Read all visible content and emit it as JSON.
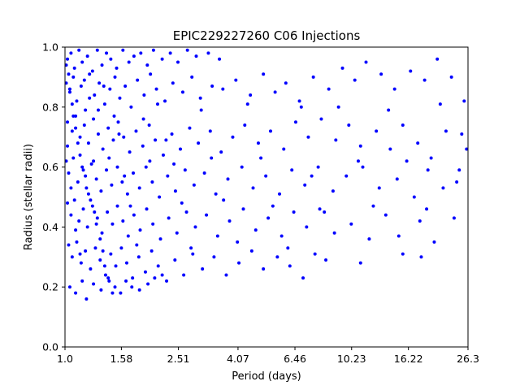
{
  "chart_data": {
    "type": "scatter",
    "title": "EPIC229227260 C06 Injections",
    "xlabel": "Period (days)",
    "ylabel": "Radius (stellar radii)",
    "x_scale": "log",
    "xlim": [
      1.0,
      26.3
    ],
    "ylim": [
      0.0,
      1.0
    ],
    "x_ticks": [
      1.0,
      1.58,
      2.51,
      4.07,
      6.46,
      10.23,
      16.22,
      26.3
    ],
    "x_tick_labels": [
      "1.0",
      "1.58",
      "2.51",
      "4.07",
      "6.46",
      "10.23",
      "16.22",
      "26.3"
    ],
    "y_ticks": [
      0.0,
      0.2,
      0.4,
      0.6,
      0.8,
      1.0
    ],
    "y_tick_labels": [
      "0.0",
      "0.2",
      "0.4",
      "0.6",
      "0.8",
      "1.0"
    ],
    "grid": false,
    "marker_color": "#0000ff",
    "series": [
      {
        "points": [
          [
            1.02,
            0.96
          ],
          [
            1.05,
            0.98
          ],
          [
            1.08,
            0.93
          ],
          [
            1.12,
            0.99
          ],
          [
            1.15,
            0.95
          ],
          [
            1.2,
            0.97
          ],
          [
            1.25,
            0.92
          ],
          [
            1.3,
            0.99
          ],
          [
            1.35,
            0.94
          ],
          [
            1.4,
            0.98
          ],
          [
            1.45,
            0.96
          ],
          [
            1.52,
            0.93
          ],
          [
            1.6,
            0.99
          ],
          [
            1.68,
            0.95
          ],
          [
            1.75,
            0.97
          ],
          [
            1.85,
            0.98
          ],
          [
            1.95,
            0.94
          ],
          [
            2.05,
            0.99
          ],
          [
            2.2,
            0.96
          ],
          [
            2.35,
            0.98
          ],
          [
            2.5,
            0.95
          ],
          [
            2.7,
            0.99
          ],
          [
            2.9,
            0.97
          ],
          [
            3.2,
            0.98
          ],
          [
            3.5,
            0.96
          ],
          [
            1.01,
            0.88
          ],
          [
            1.04,
            0.85
          ],
          [
            1.07,
            0.9
          ],
          [
            1.1,
            0.82
          ],
          [
            1.14,
            0.87
          ],
          [
            1.18,
            0.79
          ],
          [
            1.22,
            0.91
          ],
          [
            1.27,
            0.84
          ],
          [
            1.32,
            0.88
          ],
          [
            1.38,
            0.81
          ],
          [
            1.44,
            0.86
          ],
          [
            1.5,
            0.9
          ],
          [
            1.56,
            0.83
          ],
          [
            1.63,
            0.87
          ],
          [
            1.71,
            0.8
          ],
          [
            1.8,
            0.89
          ],
          [
            1.9,
            0.84
          ],
          [
            2.0,
            0.91
          ],
          [
            2.1,
            0.86
          ],
          [
            2.25,
            0.82
          ],
          [
            2.4,
            0.88
          ],
          [
            2.6,
            0.85
          ],
          [
            2.8,
            0.9
          ],
          [
            3.0,
            0.83
          ],
          [
            3.3,
            0.87
          ],
          [
            3.6,
            0.86
          ],
          [
            4.0,
            0.89
          ],
          [
            4.5,
            0.84
          ],
          [
            5.0,
            0.91
          ],
          [
            5.5,
            0.85
          ],
          [
            6.0,
            0.88
          ],
          [
            6.7,
            0.82
          ],
          [
            7.5,
            0.9
          ],
          [
            8.5,
            0.86
          ],
          [
            9.5,
            0.93
          ],
          [
            10.5,
            0.89
          ],
          [
            11.5,
            0.95
          ],
          [
            13.0,
            0.91
          ],
          [
            14.5,
            0.86
          ],
          [
            16.5,
            0.92
          ],
          [
            18.5,
            0.89
          ],
          [
            20.5,
            0.96
          ],
          [
            23.0,
            0.9
          ],
          [
            25.5,
            0.82
          ],
          [
            1.02,
            0.75
          ],
          [
            1.06,
            0.72
          ],
          [
            1.09,
            0.77
          ],
          [
            1.13,
            0.7
          ],
          [
            1.17,
            0.74
          ],
          [
            1.21,
            0.68
          ],
          [
            1.26,
            0.76
          ],
          [
            1.31,
            0.71
          ],
          [
            1.36,
            0.66
          ],
          [
            1.42,
            0.73
          ],
          [
            1.48,
            0.69
          ],
          [
            1.54,
            0.75
          ],
          [
            1.61,
            0.7
          ],
          [
            1.69,
            0.65
          ],
          [
            1.78,
            0.72
          ],
          [
            1.88,
            0.67
          ],
          [
            1.98,
            0.74
          ],
          [
            2.08,
            0.69
          ],
          [
            2.22,
            0.64
          ],
          [
            2.38,
            0.71
          ],
          [
            2.55,
            0.66
          ],
          [
            2.75,
            0.73
          ],
          [
            2.95,
            0.68
          ],
          [
            3.25,
            0.72
          ],
          [
            3.55,
            0.65
          ],
          [
            3.9,
            0.7
          ],
          [
            4.3,
            0.74
          ],
          [
            4.8,
            0.68
          ],
          [
            5.3,
            0.72
          ],
          [
            5.9,
            0.66
          ],
          [
            6.5,
            0.75
          ],
          [
            7.2,
            0.7
          ],
          [
            8.0,
            0.76
          ],
          [
            9.0,
            0.69
          ],
          [
            10.0,
            0.74
          ],
          [
            11.0,
            0.67
          ],
          [
            12.5,
            0.72
          ],
          [
            14.0,
            0.66
          ],
          [
            15.5,
            0.74
          ],
          [
            17.5,
            0.68
          ],
          [
            19.5,
            0.63
          ],
          [
            22.0,
            0.72
          ],
          [
            24.5,
            0.59
          ],
          [
            26.0,
            0.66
          ],
          [
            1.01,
            0.62
          ],
          [
            1.03,
            0.58
          ],
          [
            1.07,
            0.63
          ],
          [
            1.11,
            0.55
          ],
          [
            1.15,
            0.6
          ],
          [
            1.19,
            0.53
          ],
          [
            1.24,
            0.61
          ],
          [
            1.29,
            0.56
          ],
          [
            1.34,
            0.52
          ],
          [
            1.4,
            0.59
          ],
          [
            1.46,
            0.54
          ],
          [
            1.53,
            0.6
          ],
          [
            1.59,
            0.55
          ],
          [
            1.66,
            0.51
          ],
          [
            1.74,
            0.58
          ],
          [
            1.83,
            0.53
          ],
          [
            1.93,
            0.6
          ],
          [
            2.03,
            0.55
          ],
          [
            2.15,
            0.5
          ],
          [
            2.3,
            0.57
          ],
          [
            2.45,
            0.52
          ],
          [
            2.65,
            0.59
          ],
          [
            2.85,
            0.54
          ],
          [
            3.1,
            0.58
          ],
          [
            3.4,
            0.51
          ],
          [
            3.75,
            0.56
          ],
          [
            4.2,
            0.6
          ],
          [
            4.6,
            0.53
          ],
          [
            5.1,
            0.57
          ],
          [
            5.7,
            0.51
          ],
          [
            6.3,
            0.59
          ],
          [
            7.0,
            0.54
          ],
          [
            7.8,
            0.6
          ],
          [
            8.8,
            0.52
          ],
          [
            9.8,
            0.57
          ],
          [
            11.2,
            0.6
          ],
          [
            12.8,
            0.53
          ],
          [
            14.8,
            0.56
          ],
          [
            17.0,
            0.5
          ],
          [
            19.0,
            0.59
          ],
          [
            21.5,
            0.53
          ],
          [
            24.0,
            0.55
          ],
          [
            1.02,
            0.48
          ],
          [
            1.05,
            0.44
          ],
          [
            1.08,
            0.49
          ],
          [
            1.12,
            0.42
          ],
          [
            1.16,
            0.46
          ],
          [
            1.2,
            0.4
          ],
          [
            1.25,
            0.47
          ],
          [
            1.3,
            0.43
          ],
          [
            1.35,
            0.38
          ],
          [
            1.41,
            0.45
          ],
          [
            1.47,
            0.41
          ],
          [
            1.53,
            0.47
          ],
          [
            1.6,
            0.42
          ],
          [
            1.67,
            0.37
          ],
          [
            1.75,
            0.44
          ],
          [
            1.84,
            0.39
          ],
          [
            1.94,
            0.46
          ],
          [
            2.04,
            0.41
          ],
          [
            2.17,
            0.36
          ],
          [
            2.32,
            0.43
          ],
          [
            2.48,
            0.38
          ],
          [
            2.68,
            0.45
          ],
          [
            2.88,
            0.4
          ],
          [
            3.15,
            0.44
          ],
          [
            3.45,
            0.37
          ],
          [
            3.8,
            0.42
          ],
          [
            4.25,
            0.46
          ],
          [
            4.7,
            0.39
          ],
          [
            5.2,
            0.43
          ],
          [
            5.8,
            0.37
          ],
          [
            6.4,
            0.45
          ],
          [
            7.1,
            0.4
          ],
          [
            7.9,
            0.46
          ],
          [
            8.9,
            0.38
          ],
          [
            10.2,
            0.41
          ],
          [
            11.8,
            0.36
          ],
          [
            13.5,
            0.44
          ],
          [
            15.0,
            0.37
          ],
          [
            17.8,
            0.42
          ],
          [
            20.0,
            0.35
          ],
          [
            23.5,
            0.43
          ],
          [
            1.03,
            0.34
          ],
          [
            1.06,
            0.3
          ],
          [
            1.1,
            0.35
          ],
          [
            1.14,
            0.28
          ],
          [
            1.18,
            0.32
          ],
          [
            1.23,
            0.26
          ],
          [
            1.28,
            0.33
          ],
          [
            1.33,
            0.29
          ],
          [
            1.39,
            0.24
          ],
          [
            1.45,
            0.31
          ],
          [
            1.51,
            0.27
          ],
          [
            1.58,
            0.33
          ],
          [
            1.65,
            0.28
          ],
          [
            1.73,
            0.23
          ],
          [
            1.82,
            0.3
          ],
          [
            1.92,
            0.25
          ],
          [
            2.02,
            0.32
          ],
          [
            2.13,
            0.27
          ],
          [
            2.28,
            0.22
          ],
          [
            2.44,
            0.29
          ],
          [
            2.62,
            0.24
          ],
          [
            2.82,
            0.31
          ],
          [
            3.05,
            0.26
          ],
          [
            3.35,
            0.3
          ],
          [
            3.7,
            0.24
          ],
          [
            4.1,
            0.28
          ],
          [
            4.55,
            0.32
          ],
          [
            5.0,
            0.26
          ],
          [
            5.6,
            0.3
          ],
          [
            6.2,
            0.27
          ],
          [
            6.9,
            0.23
          ],
          [
            7.6,
            0.31
          ],
          [
            8.3,
            0.29
          ],
          [
            11.0,
            0.28
          ],
          [
            15.5,
            0.31
          ],
          [
            18.0,
            0.3
          ],
          [
            1.04,
            0.2
          ],
          [
            1.09,
            0.18
          ],
          [
            1.15,
            0.22
          ],
          [
            1.19,
            0.16
          ],
          [
            1.26,
            0.21
          ],
          [
            1.34,
            0.19
          ],
          [
            1.42,
            0.23
          ],
          [
            1.5,
            0.2
          ],
          [
            1.57,
            0.18
          ],
          [
            1.64,
            0.22
          ],
          [
            1.72,
            0.2
          ],
          [
            1.83,
            0.19
          ],
          [
            1.96,
            0.21
          ],
          [
            2.07,
            0.23
          ],
          [
            2.2,
            0.24
          ],
          [
            1.01,
            0.94
          ],
          [
            1.03,
            0.91
          ],
          [
            1.04,
            0.86
          ],
          [
            1.06,
            0.81
          ],
          [
            1.07,
            0.77
          ],
          [
            1.09,
            0.73
          ],
          [
            1.11,
            0.68
          ],
          [
            1.13,
            0.64
          ],
          [
            1.16,
            0.59
          ],
          [
            1.18,
            0.57
          ],
          [
            1.21,
            0.51
          ],
          [
            1.23,
            0.49
          ],
          [
            1.27,
            0.45
          ],
          [
            1.29,
            0.41
          ],
          [
            1.33,
            0.36
          ],
          [
            1.36,
            0.32
          ],
          [
            1.38,
            0.27
          ],
          [
            1.43,
            0.22
          ],
          [
            1.47,
            0.18
          ],
          [
            1.02,
            0.67
          ],
          [
            1.05,
            0.53
          ],
          [
            1.09,
            0.39
          ],
          [
            1.13,
            0.31
          ],
          [
            1.17,
            0.89
          ],
          [
            1.22,
            0.83
          ],
          [
            1.26,
            0.62
          ],
          [
            1.31,
            0.79
          ],
          [
            1.37,
            0.87
          ],
          [
            1.43,
            0.63
          ],
          [
            1.49,
            0.77
          ],
          [
            1.55,
            0.71
          ],
          [
            1.62,
            0.57
          ],
          [
            1.7,
            0.47
          ],
          [
            1.79,
            0.34
          ],
          [
            1.89,
            0.76
          ],
          [
            1.99,
            0.62
          ],
          [
            2.12,
            0.81
          ],
          [
            2.27,
            0.69
          ],
          [
            2.42,
            0.61
          ],
          [
            2.58,
            0.48
          ],
          [
            2.78,
            0.33
          ],
          [
            3.02,
            0.79
          ],
          [
            3.28,
            0.63
          ],
          [
            3.62,
            0.49
          ],
          [
            4.05,
            0.35
          ],
          [
            4.4,
            0.81
          ],
          [
            4.9,
            0.63
          ],
          [
            5.4,
            0.47
          ],
          [
            6.1,
            0.33
          ],
          [
            6.8,
            0.8
          ],
          [
            7.4,
            0.57
          ],
          [
            8.2,
            0.45
          ],
          [
            9.2,
            0.8
          ],
          [
            10.8,
            0.62
          ],
          [
            12.2,
            0.47
          ],
          [
            13.8,
            0.79
          ],
          [
            16.0,
            0.62
          ],
          [
            18.8,
            0.46
          ],
          [
            21.0,
            0.81
          ],
          [
            25.0,
            0.71
          ]
        ]
      }
    ]
  }
}
